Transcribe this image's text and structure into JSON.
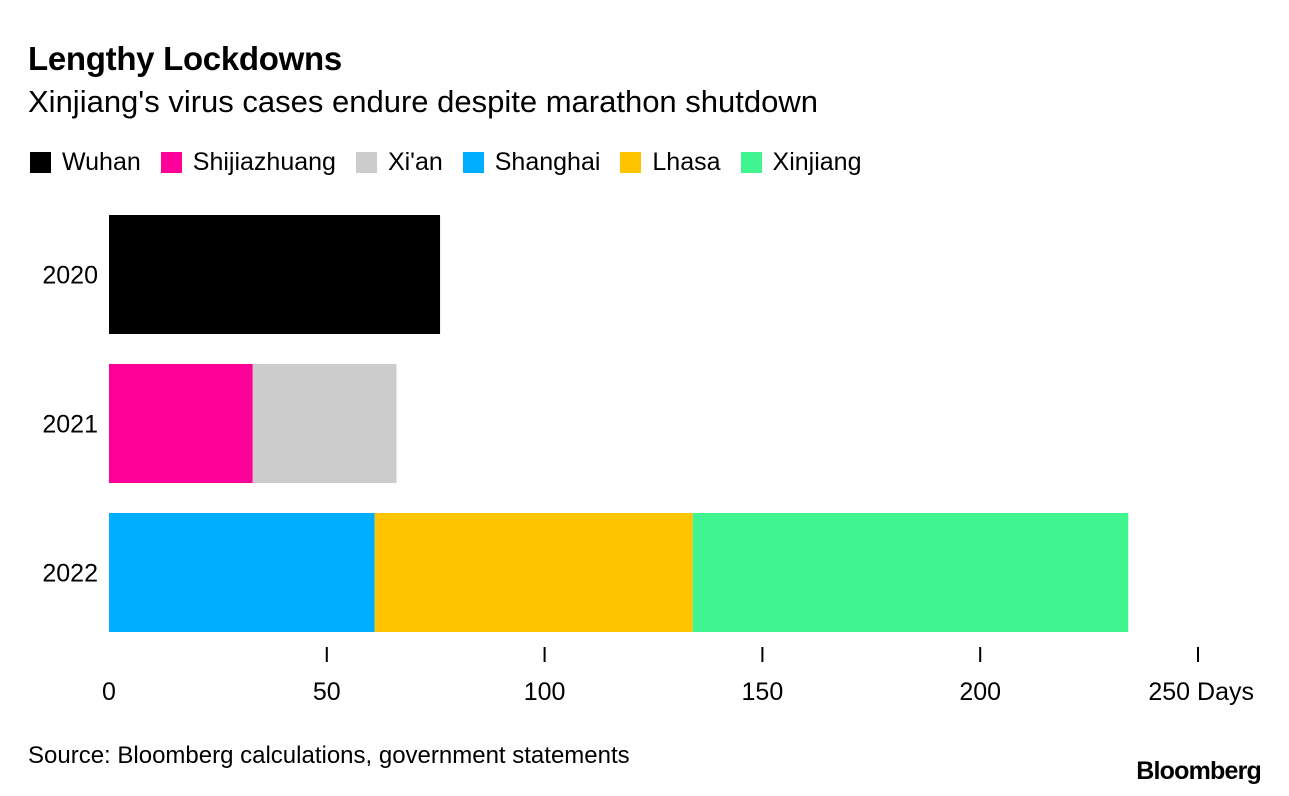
{
  "chart_data": {
    "type": "bar",
    "orientation": "horizontal",
    "stacked": true,
    "title": "Lengthy Lockdowns",
    "subtitle": "Xinjiang's virus cases endure despite marathon shutdown",
    "categories": [
      "2020",
      "2021",
      "2022"
    ],
    "series": [
      {
        "name": "Wuhan",
        "color": "#000000",
        "values": [
          76,
          0,
          0
        ]
      },
      {
        "name": "Shijiazhuang",
        "color": "#ff0099",
        "values": [
          0,
          33,
          0
        ]
      },
      {
        "name": "Xi'an",
        "color": "#cccccc",
        "values": [
          0,
          33,
          0
        ]
      },
      {
        "name": "Shanghai",
        "color": "#00aeff",
        "values": [
          0,
          0,
          61
        ]
      },
      {
        "name": "Lhasa",
        "color": "#ffc400",
        "values": [
          0,
          0,
          73
        ]
      },
      {
        "name": "Xinjiang",
        "color": "#40f590",
        "values": [
          0,
          0,
          100
        ]
      }
    ],
    "xlim": [
      0,
      250
    ],
    "xticks": [
      0,
      50,
      100,
      150,
      200,
      250
    ],
    "xtick_labels": [
      "0",
      "50",
      "100",
      "150",
      "200",
      "250 Days"
    ],
    "xlabel": "",
    "ylabel": "",
    "grid": false,
    "legend_position": "top-left"
  },
  "source": "Source: Bloomberg calculations, government statements",
  "brand": "Bloomberg"
}
